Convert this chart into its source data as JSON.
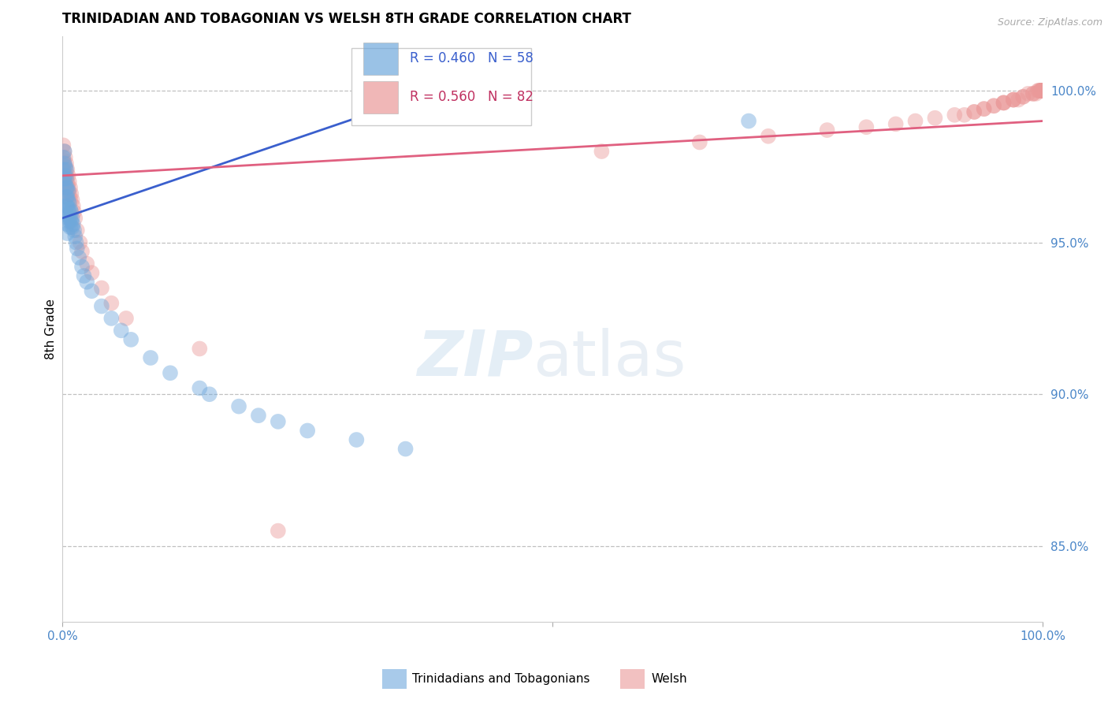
{
  "title": "TRINIDADIAN AND TOBAGONIAN VS WELSH 8TH GRADE CORRELATION CHART",
  "source_text": "Source: ZipAtlas.com",
  "ylabel": "8th Grade",
  "ytick_labels": [
    "100.0%",
    "95.0%",
    "90.0%",
    "85.0%"
  ],
  "ytick_values": [
    1.0,
    0.95,
    0.9,
    0.85
  ],
  "xlim": [
    0.0,
    1.0
  ],
  "ylim": [
    0.825,
    1.018
  ],
  "blue_R": 0.46,
  "blue_N": 58,
  "pink_R": 0.56,
  "pink_N": 82,
  "blue_color": "#6fa8dc",
  "pink_color": "#ea9999",
  "blue_line_color": "#3a5fcd",
  "pink_line_color": "#e06080",
  "legend_label_blue": "Trinidadians and Tobagonians",
  "legend_label_pink": "Welsh",
  "blue_line_x": [
    0.0,
    0.4
  ],
  "blue_line_y": [
    0.958,
    1.002
  ],
  "pink_line_x": [
    0.0,
    1.0
  ],
  "pink_line_y": [
    0.972,
    0.99
  ],
  "blue_pts_x": [
    0.001,
    0.001,
    0.002,
    0.002,
    0.002,
    0.003,
    0.003,
    0.003,
    0.004,
    0.004,
    0.004,
    0.004,
    0.004,
    0.005,
    0.005,
    0.005,
    0.005,
    0.005,
    0.005,
    0.006,
    0.006,
    0.006,
    0.006,
    0.007,
    0.007,
    0.007,
    0.008,
    0.008,
    0.008,
    0.009,
    0.009,
    0.01,
    0.01,
    0.011,
    0.012,
    0.013,
    0.014,
    0.015,
    0.017,
    0.02,
    0.022,
    0.025,
    0.03,
    0.04,
    0.05,
    0.06,
    0.07,
    0.09,
    0.11,
    0.14,
    0.15,
    0.18,
    0.2,
    0.22,
    0.25,
    0.3,
    0.35,
    0.7
  ],
  "blue_pts_y": [
    0.978,
    0.974,
    0.98,
    0.976,
    0.971,
    0.975,
    0.972,
    0.969,
    0.974,
    0.971,
    0.968,
    0.965,
    0.962,
    0.968,
    0.965,
    0.962,
    0.959,
    0.956,
    0.953,
    0.967,
    0.964,
    0.961,
    0.958,
    0.963,
    0.96,
    0.957,
    0.961,
    0.958,
    0.955,
    0.96,
    0.957,
    0.958,
    0.955,
    0.956,
    0.954,
    0.952,
    0.95,
    0.948,
    0.945,
    0.942,
    0.939,
    0.937,
    0.934,
    0.929,
    0.925,
    0.921,
    0.918,
    0.912,
    0.907,
    0.902,
    0.9,
    0.896,
    0.893,
    0.891,
    0.888,
    0.885,
    0.882,
    0.99
  ],
  "pink_pts_x": [
    0.001,
    0.001,
    0.001,
    0.002,
    0.002,
    0.002,
    0.003,
    0.003,
    0.003,
    0.004,
    0.004,
    0.004,
    0.005,
    0.005,
    0.005,
    0.006,
    0.006,
    0.007,
    0.007,
    0.008,
    0.008,
    0.009,
    0.01,
    0.011,
    0.012,
    0.013,
    0.015,
    0.018,
    0.02,
    0.025,
    0.03,
    0.04,
    0.05,
    0.065,
    0.14,
    0.22,
    0.55,
    0.65,
    0.72,
    0.78,
    0.82,
    0.85,
    0.87,
    0.89,
    0.91,
    0.92,
    0.93,
    0.93,
    0.94,
    0.94,
    0.95,
    0.95,
    0.96,
    0.96,
    0.96,
    0.97,
    0.97,
    0.97,
    0.975,
    0.98,
    0.98,
    0.985,
    0.99,
    0.99,
    0.993,
    0.995,
    0.996,
    0.997,
    0.998,
    0.998,
    0.999,
    0.999,
    0.999,
    0.999,
    0.999,
    0.999,
    0.999,
    0.999,
    0.999,
    0.999,
    0.999,
    0.999
  ],
  "pink_pts_y": [
    0.982,
    0.977,
    0.973,
    0.98,
    0.976,
    0.972,
    0.978,
    0.974,
    0.97,
    0.976,
    0.972,
    0.968,
    0.974,
    0.97,
    0.966,
    0.972,
    0.968,
    0.97,
    0.966,
    0.968,
    0.964,
    0.966,
    0.964,
    0.962,
    0.96,
    0.958,
    0.954,
    0.95,
    0.947,
    0.943,
    0.94,
    0.935,
    0.93,
    0.925,
    0.915,
    0.855,
    0.98,
    0.983,
    0.985,
    0.987,
    0.988,
    0.989,
    0.99,
    0.991,
    0.992,
    0.992,
    0.993,
    0.993,
    0.994,
    0.994,
    0.995,
    0.995,
    0.996,
    0.996,
    0.996,
    0.997,
    0.997,
    0.997,
    0.997,
    0.998,
    0.998,
    0.999,
    0.999,
    0.999,
    0.999,
    1.0,
    1.0,
    1.0,
    1.0,
    1.0,
    1.0,
    1.0,
    1.0,
    1.0,
    1.0,
    1.0,
    1.0,
    1.0,
    1.0,
    1.0,
    1.0,
    1.0
  ]
}
